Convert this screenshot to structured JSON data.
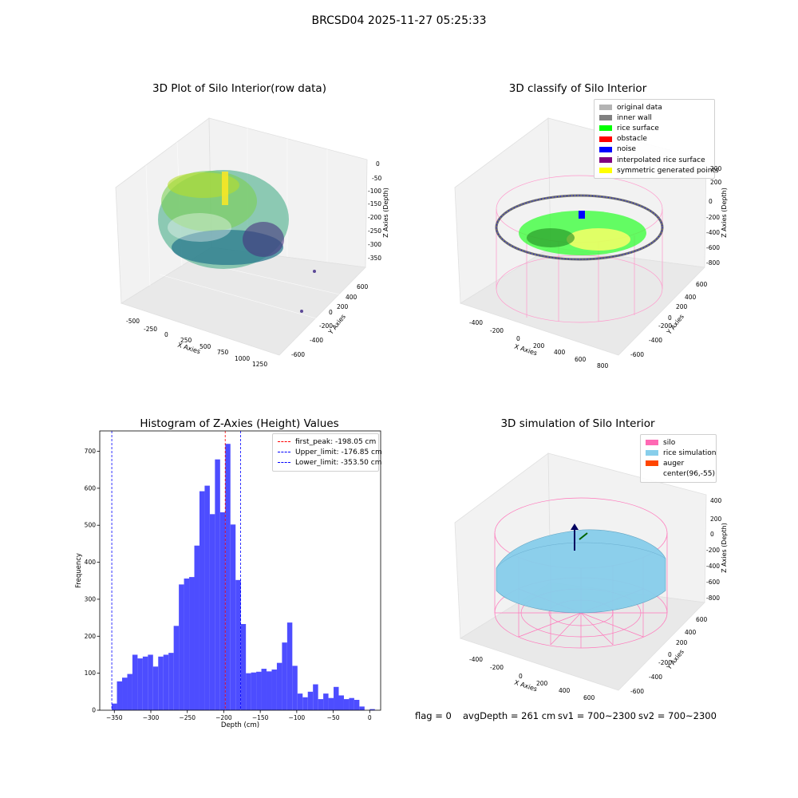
{
  "suptitle": "BRCSD04 2025-11-27 05:25:33",
  "panel1": {
    "title": "3D Plot of Silo Interior(row data)",
    "xlabel": "X Axies",
    "ylabel": "Y Axies",
    "zlabel": "Z Axies (Depth)",
    "xticks": [
      "-500",
      "-250",
      "0",
      "250",
      "500",
      "750",
      "1000",
      "1250"
    ],
    "yticks": [
      "-600",
      "-400",
      "-200",
      "0",
      "200",
      "400",
      "600"
    ],
    "zticks": [
      "0",
      "-50",
      "-100",
      "-150",
      "-200",
      "-250",
      "-300",
      "-350"
    ]
  },
  "panel2": {
    "title": "3D classify of Silo Interior",
    "xlabel": "X Axies",
    "ylabel": "Y Axies",
    "zlabel": "Z Axies (Depth)",
    "xticks": [
      "-400",
      "-200",
      "0",
      "200",
      "400",
      "600",
      "800"
    ],
    "yticks": [
      "-600",
      "-400",
      "-200",
      "0",
      "200",
      "400",
      "600"
    ],
    "zticks": [
      "200",
      "0",
      "-200",
      "-400",
      "-600",
      "-800"
    ],
    "legend": [
      {
        "label": "original data",
        "color": "#b3b3b3"
      },
      {
        "label": "inner wall",
        "color": "#808080"
      },
      {
        "label": "rice surface",
        "color": "#00ff00"
      },
      {
        "label": "obstacle",
        "color": "#ff0000"
      },
      {
        "label": "noise",
        "color": "#0000ff"
      },
      {
        "label": "interpolated rice surface",
        "color": "#800080"
      },
      {
        "label": "symmetric generated points",
        "color": "#ffff00"
      }
    ]
  },
  "panel3": {
    "title": "Histogram of Z-Axies (Height) Values",
    "xlabel": "Depth (cm)",
    "ylabel": "Frequency",
    "legend": [
      {
        "label": "first_peak: -198.05 cm",
        "color": "#ff0000"
      },
      {
        "label": "Upper_limit: -176.85 cm",
        "color": "#0000ff"
      },
      {
        "label": "Lower_limit: -353.50 cm",
        "color": "#0000ff"
      }
    ]
  },
  "panel4": {
    "title": "3D simulation of Silo Interior",
    "xlabel": "X Axies",
    "ylabel": "Y Axies",
    "zlabel": "Z Axies (Depth)",
    "xticks": [
      "-400",
      "-200",
      "0",
      "200",
      "400",
      "600"
    ],
    "yticks": [
      "-600",
      "-400",
      "-200",
      "0",
      "200",
      "400",
      "600"
    ],
    "zticks": [
      "400",
      "200",
      "0",
      "-200",
      "-400",
      "-600",
      "-800"
    ],
    "legend": [
      {
        "label": "silo",
        "color": "#ff69b4"
      },
      {
        "label": "rice simulation",
        "color": "#87ceeb"
      },
      {
        "label": "auger",
        "color": "#ff4500"
      },
      {
        "label": "center(96,-55)",
        "color": "#ffffff"
      }
    ]
  },
  "status": {
    "flag": "flag = 0",
    "avg": "avgDepth = 261 cm",
    "sv1": "sv1 = 700~2300",
    "sv2": "sv2 = 700~2300"
  },
  "chart_data": [
    {
      "type": "histogram",
      "title": "Histogram of Z-Axies (Height) Values",
      "xlabel": "Depth (cm)",
      "ylabel": "Frequency",
      "xlim": [
        -370,
        15
      ],
      "ylim": [
        0,
        755
      ],
      "xticks": [
        -350,
        -300,
        -250,
        -200,
        -150,
        -100,
        -50,
        0
      ],
      "yticks": [
        0,
        100,
        200,
        300,
        400,
        500,
        600,
        700
      ],
      "bin_start": -353.5,
      "bin_width": 7.07,
      "counts": [
        18,
        78,
        88,
        98,
        150,
        140,
        145,
        150,
        118,
        145,
        150,
        155,
        228,
        340,
        356,
        360,
        445,
        592,
        607,
        530,
        678,
        535,
        720,
        502,
        352,
        233,
        100,
        102,
        104,
        112,
        105,
        110,
        128,
        183,
        237,
        120,
        45,
        35,
        50,
        70,
        30,
        45,
        33,
        63,
        40,
        30,
        33,
        28,
        10,
        0,
        3
      ],
      "vlines": [
        {
          "name": "first_peak",
          "x": -198.05,
          "color": "#ff0000"
        },
        {
          "name": "Upper_limit",
          "x": -176.85,
          "color": "#0000ff"
        },
        {
          "name": "Lower_limit",
          "x": -353.5,
          "color": "#0000ff"
        }
      ],
      "bar_color": "#4d4dff",
      "legend_position": "upper right"
    }
  ]
}
